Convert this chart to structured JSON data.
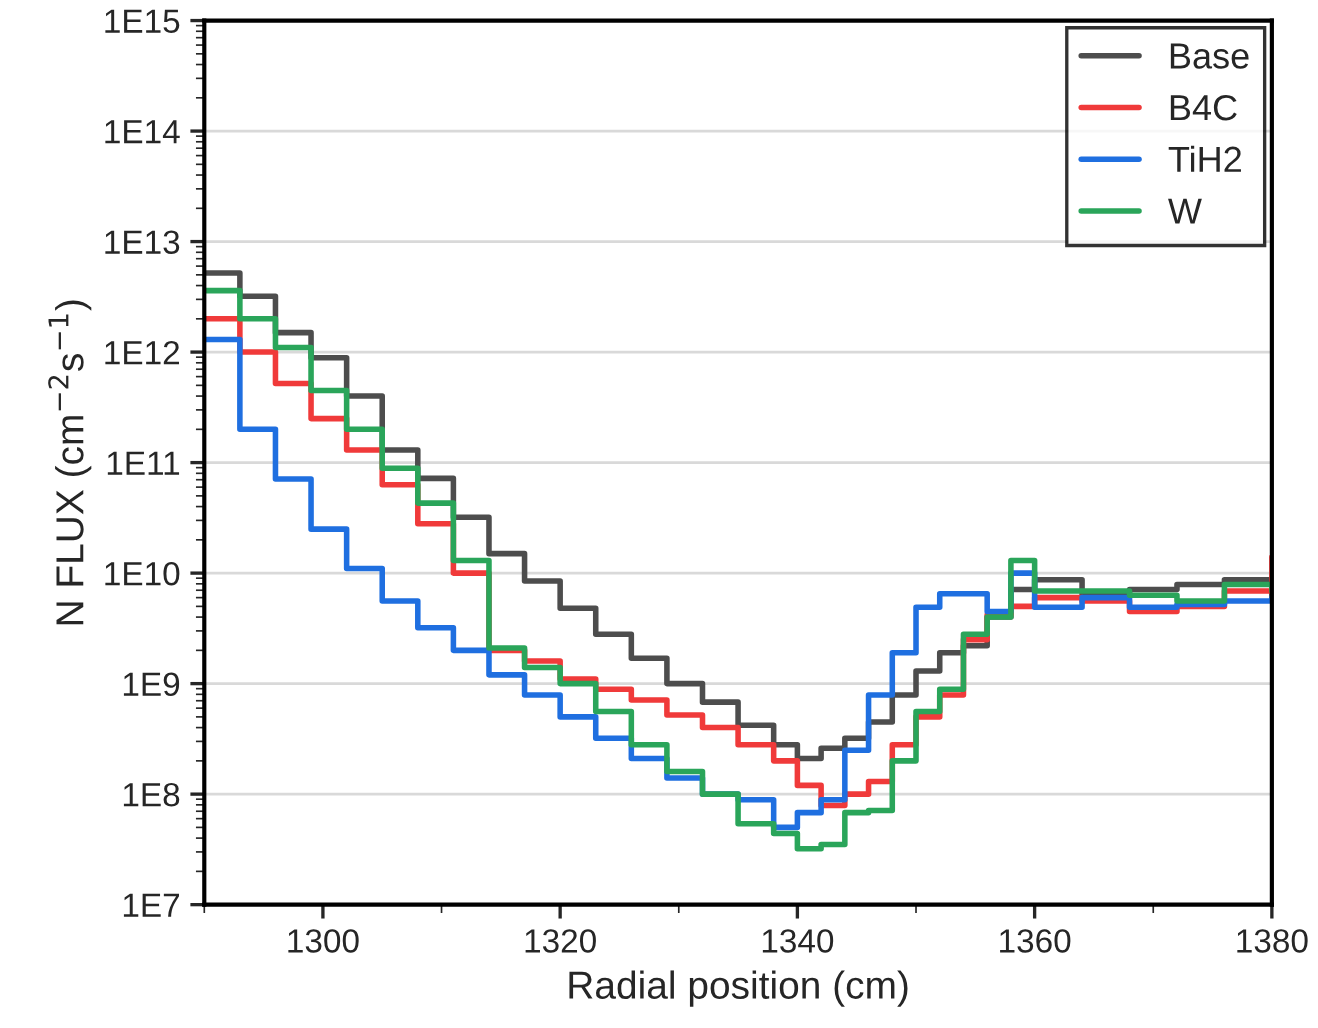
{
  "chart_data": {
    "type": "step",
    "xlabel": "Radial position (cm)",
    "ylabel": "N FLUX (cm$^{−2}$s$^{−1}$)",
    "x": [
      1290,
      1293,
      1296,
      1299,
      1302,
      1305,
      1308,
      1311,
      1314,
      1317,
      1320,
      1323,
      1326,
      1329,
      1332,
      1335,
      1338,
      1340,
      1342,
      1344,
      1346,
      1348,
      1350,
      1352,
      1354,
      1356,
      1358,
      1360,
      1364,
      1368,
      1372,
      1376,
      1380
    ],
    "series": [
      {
        "name": "Base",
        "color": "#4d4d4d",
        "values": [
          5200000000000.0,
          3200000000000.0,
          1500000000000.0,
          890000000000.0,
          400000000000.0,
          130000000000.0,
          72000000000.0,
          32000000000.0,
          15000000000.0,
          8500000000.0,
          4800000000.0,
          2800000000.0,
          1700000000.0,
          1000000000.0,
          680000000.0,
          420000000.0,
          280000000.0,
          210000000.0,
          260000000.0,
          320000000.0,
          450000000.0,
          790000000.0,
          1300000000.0,
          1900000000.0,
          2200000000.0,
          4000000000.0,
          7100000000.0,
          8700000000.0,
          6300000000.0,
          7100000000.0,
          7900000000.0,
          8700000000.0,
          6000000000.0
        ]
      },
      {
        "name": "B4C",
        "color": "#f03a3a",
        "values": [
          2000000000000.0,
          1000000000000.0,
          520000000000.0,
          250000000000.0,
          130000000000.0,
          63000000000.0,
          28000000000.0,
          10000000000.0,
          2000000000.0,
          1600000000.0,
          1100000000.0,
          890000000.0,
          710000000.0,
          520000000.0,
          400000000.0,
          280000000.0,
          200000000.0,
          120000000.0,
          79000000.0,
          100000000.0,
          130000000.0,
          280000000.0,
          500000000.0,
          790000000.0,
          2500000000.0,
          4200000000.0,
          5000000000.0,
          6000000000.0,
          5600000000.0,
          4500000000.0,
          5000000000.0,
          6900000000.0,
          14000000000.0
        ]
      },
      {
        "name": "TiH2",
        "color": "#1f6fe0",
        "values": [
          1300000000000.0,
          200000000000.0,
          71000000000.0,
          25000000000.0,
          11000000000.0,
          5600000000.0,
          3200000000.0,
          2000000000.0,
          1200000000.0,
          790000000.0,
          500000000.0,
          320000000.0,
          210000000.0,
          140000000.0,
          100000000.0,
          89000000.0,
          50000000.0,
          68000000.0,
          89000000.0,
          250000000.0,
          790000000.0,
          1900000000.0,
          4900000000.0,
          6500000000.0,
          6500000000.0,
          4500000000.0,
          10000000000.0,
          4900000000.0,
          6000000000.0,
          4900000000.0,
          5200000000.0,
          5600000000.0,
          6000000000.0
        ]
      },
      {
        "name": "W",
        "color": "#2aa55a",
        "values": [
          3600000000000.0,
          2000000000000.0,
          1100000000000.0,
          450000000000.0,
          200000000000.0,
          89000000000.0,
          43000000000.0,
          13000000000.0,
          2100000000.0,
          1400000000.0,
          1000000000.0,
          560000000.0,
          280000000.0,
          160000000.0,
          100000000.0,
          54000000.0,
          44000000.0,
          32000000.0,
          35000000.0,
          68000000.0,
          71000000.0,
          200000000.0,
          560000000.0,
          890000000.0,
          2800000000.0,
          4000000000.0,
          13000000000.0,
          6900000000.0,
          6900000000.0,
          6300000000.0,
          5600000000.0,
          7900000000.0,
          6900000000.0
        ]
      }
    ],
    "log": "y",
    "xlim": [
      1290,
      1380
    ],
    "xticks": [
      1300,
      1320,
      1340,
      1360,
      1380
    ],
    "ylim": [
      10000000.0,
      1000000000000000.0
    ],
    "yticks": [
      {
        "value": 10000000.0,
        "label": "1E7"
      },
      {
        "value": 100000000.0,
        "label": "1E8"
      },
      {
        "value": 1000000000.0,
        "label": "1E9"
      },
      {
        "value": 10000000000.0,
        "label": "1E10"
      },
      {
        "value": 100000000000.0,
        "label": "1E11"
      },
      {
        "value": 1000000000000.0,
        "label": "1E12"
      },
      {
        "value": 10000000000000.0,
        "label": "1E13"
      },
      {
        "value": 100000000000000.0,
        "label": "1E14"
      },
      {
        "value": 1000000000000000.0,
        "label": "1E15"
      }
    ],
    "grid": "y",
    "legend": "top right",
    "line_style": "solid"
  }
}
